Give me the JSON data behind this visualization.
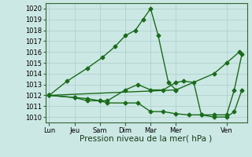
{
  "title": "",
  "xlabel": "Pression niveau de la mer( hPa )",
  "bg_color": "#cce8e4",
  "grid_color": "#aacccc",
  "line_color": "#1a6b1a",
  "spine_color": "#336633",
  "ylim": [
    1009.5,
    1020.5
  ],
  "yticks": [
    1010,
    1011,
    1012,
    1013,
    1014,
    1015,
    1016,
    1017,
    1018,
    1019,
    1020
  ],
  "x_labels": [
    "Lun",
    "Jeu",
    "Sam",
    "Dim",
    "Mar",
    "Mer",
    "Ven"
  ],
  "x_positions": [
    0,
    1,
    2,
    3,
    4,
    5,
    7
  ],
  "xlim": [
    -0.15,
    7.8
  ],
  "lines": [
    {
      "x": [
        0,
        0.7,
        1.5,
        2.1,
        2.6,
        3.0,
        3.4,
        3.7,
        4.0,
        4.3,
        4.7,
        5.0
      ],
      "y": [
        1012,
        1013.3,
        1014.5,
        1015.5,
        1016.5,
        1017.5,
        1018.0,
        1019.0,
        1020.0,
        1017.5,
        1013.2,
        1012.5
      ]
    },
    {
      "x": [
        0,
        5.0,
        6.5,
        7.0,
        7.5
      ],
      "y": [
        1012,
        1012.5,
        1014.0,
        1015.0,
        1016.0
      ]
    },
    {
      "x": [
        0,
        1.0,
        1.5,
        2.0,
        2.3,
        3.0,
        3.5,
        4.0,
        4.5,
        5.0,
        5.3,
        5.7,
        6.0,
        6.5,
        7.0,
        7.3,
        7.6
      ],
      "y": [
        1012,
        1011.8,
        1011.7,
        1011.5,
        1011.5,
        1012.5,
        1013.0,
        1012.5,
        1012.5,
        1013.2,
        1013.3,
        1013.2,
        1010.2,
        1010.2,
        1010.2,
        1012.5,
        1015.8
      ]
    },
    {
      "x": [
        0,
        1.0,
        1.5,
        2.0,
        2.3,
        3.0,
        3.5,
        4.0,
        4.5,
        5.0,
        5.5,
        6.0,
        6.5,
        7.0,
        7.3,
        7.6
      ],
      "y": [
        1012,
        1011.8,
        1011.5,
        1011.5,
        1011.3,
        1011.3,
        1011.3,
        1010.5,
        1010.5,
        1010.3,
        1010.2,
        1010.2,
        1010.0,
        1010.0,
        1010.5,
        1012.5
      ]
    }
  ],
  "marker": "D",
  "marker_size": 2.5,
  "linewidth": 1.0,
  "tick_fontsize": 6.0,
  "xlabel_fontsize": 7.5
}
